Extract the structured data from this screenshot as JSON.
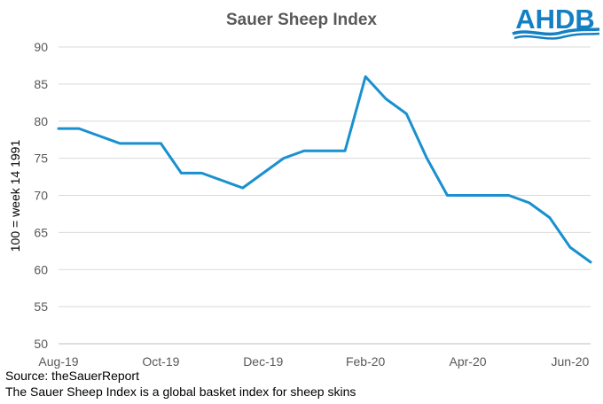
{
  "logo": {
    "text": "AHDB",
    "color": "#1480c4"
  },
  "footnotes": {
    "source": "Source: theSauerReport",
    "description": "The Sauer Sheep Index is a global basket index for sheep skins"
  },
  "chart_data": {
    "type": "line",
    "title": "Sauer Sheep Index",
    "xlabel": "",
    "ylabel": "100 = week 14 1991",
    "ylim": [
      50,
      90
    ],
    "yticks": [
      50,
      55,
      60,
      65,
      70,
      75,
      80,
      85,
      90
    ],
    "grid": true,
    "line_color": "#1a90cf",
    "x_tick_labels": [
      {
        "label": "Aug-19",
        "index": 0
      },
      {
        "label": "Oct-19",
        "index": 5
      },
      {
        "label": "Dec-19",
        "index": 10
      },
      {
        "label": "Feb-20",
        "index": 15
      },
      {
        "label": "Apr-20",
        "index": 20
      },
      {
        "label": "Jun-20",
        "index": 25
      }
    ],
    "values": [
      79,
      79,
      78,
      77,
      77,
      77,
      73,
      73,
      72,
      71,
      73,
      75,
      76,
      76,
      76,
      86,
      83,
      81,
      75,
      70,
      70,
      70,
      70,
      69,
      67,
      63,
      61
    ]
  }
}
